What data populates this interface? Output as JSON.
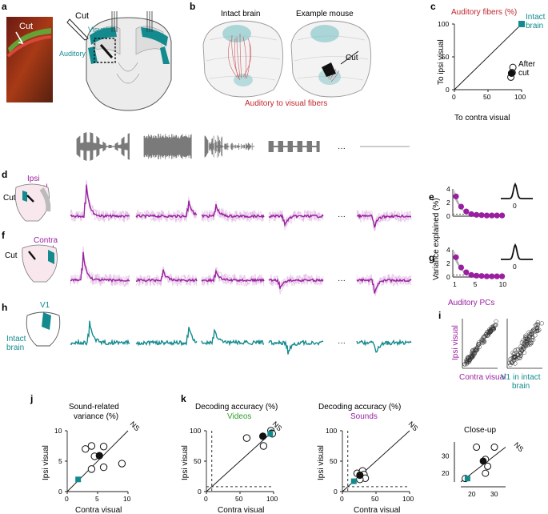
{
  "panels": {
    "a": {
      "letter": "a",
      "cut": "Cut",
      "cut2": "Cut",
      "visual": "Visual",
      "auditory": "Auditory"
    },
    "b": {
      "letter": "b",
      "title_left": "Intact brain",
      "title_right": "Example mouse",
      "cut": "Cut",
      "caption": "Auditory to visual fibers"
    },
    "c": {
      "letter": "c",
      "title": "Auditory fibers (%)",
      "ylabel": "To ipsi visual",
      "xlabel": "To contra visual",
      "intact": "Intact brain",
      "after": "After cut",
      "yticks": [
        "100",
        "50",
        "0"
      ],
      "xticks": [
        "0",
        "50",
        "100"
      ]
    },
    "d": {
      "letter": "d",
      "label": "Ipsi visual",
      "cut": "Cut"
    },
    "f": {
      "letter": "f",
      "label": "Contra visual",
      "cut": "Cut"
    },
    "h": {
      "letter": "h",
      "label": "Intact brain",
      "v1": "V1"
    },
    "e": {
      "letter": "e",
      "yticks": [
        "4",
        "2",
        "0"
      ],
      "inset_tick": "0"
    },
    "g": {
      "letter": "g",
      "yticks": [
        "4",
        "2",
        "0"
      ],
      "inset_tick": "0",
      "xticks": [
        "1",
        "5",
        "10"
      ],
      "ylabel": "Variance explained (%)",
      "xlabel": "Auditory PCs"
    },
    "i": {
      "letter": "i",
      "ylabel": "Ipsi visual",
      "x1": "Contra visual",
      "x2": "V1 in intact brain"
    },
    "j": {
      "letter": "j",
      "title": "Sound-related variance (%)",
      "ylabel": "Ipsi visual",
      "xlabel": "Contra visual",
      "ns": "NS",
      "yticks": [
        "10",
        "5",
        "0"
      ],
      "xticks": [
        "0",
        "5",
        "10"
      ]
    },
    "k": {
      "letter": "k",
      "title": "Decoding accuracy (%)",
      "videos": "Videos",
      "sounds": "Sounds",
      "ylabel": "Ipsi visual",
      "xlabel": "Contra visual",
      "ns": "NS",
      "ticks": [
        "0",
        "50",
        "100"
      ],
      "closeup": "Close-up",
      "cu_ticks": [
        "20",
        "30"
      ]
    },
    "ellipsis": "···"
  },
  "colors": {
    "teal": "#138a8e",
    "purple": "#9a1fa0",
    "red": "#c0272d",
    "green": "#2ca02c",
    "grey": "#7a7a7a"
  },
  "chart_data": [
    {
      "type": "scatter",
      "panel": "c",
      "title": "Auditory fibers (%)",
      "xlabel": "To contra visual",
      "ylabel": "To ipsi visual",
      "xlim": [
        0,
        100
      ],
      "ylim": [
        0,
        100
      ],
      "series": [
        {
          "name": "Intact brain",
          "points": [
            [
              100,
              100
            ]
          ]
        },
        {
          "name": "After cut",
          "points": [
            [
              87,
              34
            ],
            [
              86,
              26
            ],
            [
              84,
              19
            ]
          ],
          "mean": [
            85,
            25
          ]
        }
      ]
    },
    {
      "type": "scatter",
      "panel": "j",
      "title": "Sound-related variance (%)",
      "xlabel": "Contra visual",
      "ylabel": "Ipsi visual",
      "xlim": [
        0,
        10
      ],
      "ylim": [
        0,
        10
      ],
      "points": [
        [
          3,
          7
        ],
        [
          4,
          7.5
        ],
        [
          6,
          7.4
        ],
        [
          4.5,
          5.8
        ],
        [
          4,
          3.7
        ],
        [
          6,
          4
        ],
        [
          9,
          4.6
        ]
      ],
      "mean": [
        5.3,
        5.9
      ],
      "intact": [
        1.8,
        2
      ]
    },
    {
      "type": "scatter",
      "panel": "k",
      "subtitle": "Videos",
      "xlabel": "Contra visual",
      "ylabel": "Ipsi visual",
      "xlim": [
        0,
        100
      ],
      "ylim": [
        0,
        100
      ],
      "points": [
        [
          60,
          88
        ],
        [
          85,
          75
        ],
        [
          96,
          100
        ],
        [
          97,
          96
        ],
        [
          98,
          95
        ]
      ],
      "mean": [
        84,
        91
      ],
      "intact": [
        95,
        95
      ]
    },
    {
      "type": "scatter",
      "panel": "k",
      "subtitle": "Sounds",
      "xlabel": "Contra visual",
      "ylabel": "Ipsi visual",
      "xlim": [
        0,
        100
      ],
      "ylim": [
        0,
        100
      ],
      "points": [
        [
          22,
          30
        ],
        [
          30,
          34
        ],
        [
          32,
          28
        ],
        [
          34,
          22
        ],
        [
          26,
          20
        ]
      ],
      "mean": [
        26,
        27
      ],
      "intact": [
        17,
        17
      ]
    },
    {
      "type": "scatter",
      "panel": "k",
      "subtitle": "Close-up",
      "xlim": [
        15,
        35
      ],
      "ylim": [
        15,
        38
      ],
      "points": [
        [
          22,
          35
        ],
        [
          30,
          35
        ],
        [
          26,
          28
        ],
        [
          27,
          24
        ],
        [
          26,
          20
        ],
        [
          17,
          17
        ]
      ],
      "mean": [
        25,
        27
      ],
      "intact": [
        18,
        17
      ]
    }
  ]
}
